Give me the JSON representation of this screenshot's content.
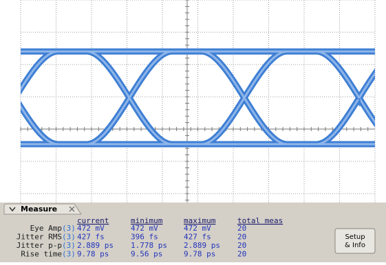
{
  "measure_panel": {
    "title": "Measure",
    "columns": [
      "current",
      "minimum",
      "maximum",
      "total meas"
    ],
    "rows": [
      {
        "label": "Eye Amp",
        "channel": "(3)",
        "values": [
          "472 mV",
          "472 mV",
          "472 mV",
          "20"
        ]
      },
      {
        "label": "Jitter RMS",
        "channel": "(3)",
        "values": [
          "427 fs",
          "396 fs",
          "427 fs",
          "20"
        ]
      },
      {
        "label": "Jitter p-p",
        "channel": "(3)",
        "values": [
          "2.889 ps",
          "1.778 ps",
          "2.889 ps",
          "20"
        ]
      },
      {
        "label": "Rise time",
        "channel": "(3)",
        "values": [
          "9.78 ps",
          "9.56 ps",
          "9.78 ps",
          "20"
        ]
      }
    ],
    "button": [
      "Setup",
      "& Info"
    ]
  }
}
